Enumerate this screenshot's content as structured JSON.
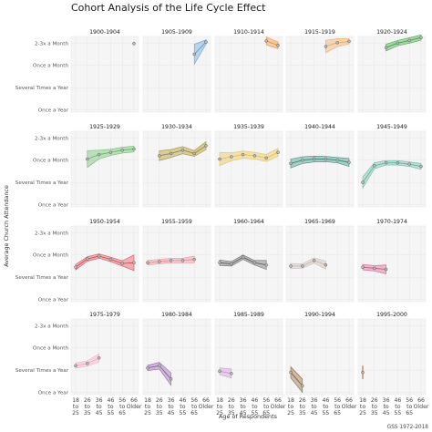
{
  "chart_data": {
    "type": "line",
    "title": "Cohort Analysis of the Life Cycle Effect",
    "xlabel": "Age of Respondents",
    "ylabel": "Average Church Attendance",
    "caption": "GSS 1972-2018",
    "x_categories": [
      [
        "18",
        "to",
        "25"
      ],
      [
        "26",
        "to",
        "35"
      ],
      [
        "36",
        "to",
        "45"
      ],
      [
        "46",
        "to",
        "55"
      ],
      [
        "56",
        "to",
        "65"
      ],
      [
        "66",
        "Older",
        ""
      ]
    ],
    "y_ticks": [
      {
        "value": 6,
        "label": "2-3x a Month"
      },
      {
        "value": 5,
        "label": "Once a Month"
      },
      {
        "value": 4,
        "label": "Several Times a Year"
      },
      {
        "value": 3,
        "label": "Once a Year"
      }
    ],
    "ylim": [
      2.9,
      6.3
    ],
    "grid": true,
    "facets": [
      {
        "label": "1900-1904",
        "color": "#7f7f7f",
        "points": [
          [
            5,
            5.98,
            0.06
          ]
        ]
      },
      {
        "label": "1905-1909",
        "color": "#5b9bd5",
        "points": [
          [
            4,
            5.5,
            0.45
          ],
          [
            5,
            6.05,
            0.1
          ]
        ]
      },
      {
        "label": "1910-1914",
        "color": "#ec8a2a",
        "points": [
          [
            4,
            6.1,
            0.18
          ],
          [
            5,
            5.9,
            0.15
          ]
        ]
      },
      {
        "label": "1915-1919",
        "color": "#f2a65a",
        "points": [
          [
            3,
            5.85,
            0.28
          ],
          [
            4,
            6.02,
            0.18
          ],
          [
            5,
            6.08,
            0.12
          ]
        ]
      },
      {
        "label": "1920-1924",
        "color": "#3aa33a",
        "points": [
          [
            2,
            5.8,
            0.15
          ],
          [
            3,
            6.0,
            0.12
          ],
          [
            4,
            6.12,
            0.12
          ],
          [
            5,
            6.25,
            0.12
          ]
        ]
      },
      {
        "label": "1925-1929",
        "color": "#5fb85f",
        "points": [
          [
            1,
            5.05,
            0.38
          ],
          [
            2,
            5.25,
            0.2
          ],
          [
            3,
            5.35,
            0.14
          ],
          [
            4,
            5.45,
            0.13
          ],
          [
            5,
            5.5,
            0.13
          ]
        ]
      },
      {
        "label": "1930-1934",
        "color": "#a08a1e",
        "points": [
          [
            1,
            5.2,
            0.22
          ],
          [
            2,
            5.3,
            0.18
          ],
          [
            3,
            5.45,
            0.16
          ],
          [
            4,
            5.3,
            0.13
          ],
          [
            5,
            5.65,
            0.18
          ]
        ]
      },
      {
        "label": "1935-1939",
        "color": "#e5c04a",
        "points": [
          [
            0,
            5.05,
            0.3
          ],
          [
            1,
            5.15,
            0.18
          ],
          [
            2,
            5.25,
            0.16
          ],
          [
            3,
            5.2,
            0.15
          ],
          [
            4,
            5.1,
            0.16
          ],
          [
            5,
            5.35,
            0.18
          ]
        ]
      },
      {
        "label": "1940-1944",
        "color": "#2e8c78",
        "points": [
          [
            0,
            4.85,
            0.2
          ],
          [
            1,
            5.0,
            0.15
          ],
          [
            2,
            5.05,
            0.13
          ],
          [
            3,
            5.05,
            0.12
          ],
          [
            4,
            5.0,
            0.12
          ],
          [
            5,
            4.9,
            0.18
          ]
        ]
      },
      {
        "label": "1945-1949",
        "color": "#62b5a0",
        "points": [
          [
            0,
            4.0,
            0.25
          ],
          [
            1,
            4.75,
            0.14
          ],
          [
            2,
            4.88,
            0.1
          ],
          [
            3,
            4.88,
            0.1
          ],
          [
            4,
            4.82,
            0.1
          ],
          [
            5,
            4.72,
            0.13
          ]
        ]
      },
      {
        "label": "1950-1954",
        "color": "#d8454f",
        "points": [
          [
            0,
            4.45,
            0.12
          ],
          [
            1,
            4.82,
            0.1
          ],
          [
            2,
            4.95,
            0.1
          ],
          [
            3,
            4.8,
            0.1
          ],
          [
            4,
            4.62,
            0.12
          ],
          [
            5,
            4.65,
            0.35
          ]
        ]
      },
      {
        "label": "1955-1959",
        "color": "#ee8a8f",
        "points": [
          [
            0,
            4.65,
            0.1
          ],
          [
            1,
            4.7,
            0.1
          ],
          [
            2,
            4.75,
            0.1
          ],
          [
            3,
            4.75,
            0.1
          ],
          [
            4,
            4.8,
            0.15
          ]
        ]
      },
      {
        "label": "1960-1964",
        "color": "#5e5e5e",
        "points": [
          [
            0,
            4.65,
            0.12
          ],
          [
            1,
            4.6,
            0.1
          ],
          [
            2,
            4.9,
            0.1
          ],
          [
            3,
            4.65,
            0.1
          ],
          [
            4,
            4.55,
            0.2
          ]
        ]
      },
      {
        "label": "1965-1969",
        "color": "#c8b8b0",
        "points": [
          [
            0,
            4.5,
            0.12
          ],
          [
            1,
            4.5,
            0.1
          ],
          [
            2,
            4.75,
            0.12
          ],
          [
            3,
            4.55,
            0.18
          ]
        ]
      },
      {
        "label": "1970-1974",
        "color": "#d25a86",
        "points": [
          [
            0,
            4.45,
            0.12
          ],
          [
            1,
            4.4,
            0.12
          ],
          [
            2,
            4.35,
            0.2
          ]
        ]
      },
      {
        "label": "1975-1979",
        "color": "#f3a8c0",
        "points": [
          [
            0,
            4.2,
            0.12
          ],
          [
            1,
            4.3,
            0.12
          ],
          [
            2,
            4.55,
            0.18
          ]
        ]
      },
      {
        "label": "1980-1984",
        "color": "#8e5aa8",
        "points": [
          [
            0,
            4.1,
            0.12
          ],
          [
            1,
            4.2,
            0.15
          ],
          [
            2,
            3.6,
            0.28
          ]
        ]
      },
      {
        "label": "1985-1989",
        "color": "#c896d0",
        "points": [
          [
            0,
            3.95,
            0.15
          ],
          [
            1,
            3.85,
            0.2
          ]
        ]
      },
      {
        "label": "1990-1994",
        "color": "#8a5a2e",
        "points": [
          [
            0,
            3.9,
            0.25
          ],
          [
            1,
            3.3,
            0.3
          ]
        ]
      },
      {
        "label": "1995-2000",
        "color": "#c07050",
        "points": [
          [
            0,
            3.9,
            0.3
          ]
        ]
      }
    ]
  }
}
